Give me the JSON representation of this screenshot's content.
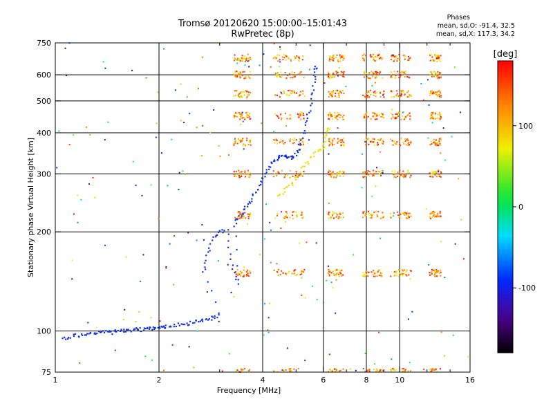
{
  "header": {
    "title": "Tromsø 20120620 15:00:00–15:01:43",
    "subtitle": "RwPretec (8p)"
  },
  "phase_info": {
    "heading": "Phases",
    "line_o": "mean, sd,O: -91.4, 32.5",
    "line_x": "mean, sd,X: 117.3, 34.2"
  },
  "colorbar": {
    "label": "[deg]",
    "ticks": [
      {
        "value": 100,
        "label": "100"
      },
      {
        "value": 0,
        "label": "0"
      },
      {
        "value": -100,
        "label": "-100"
      }
    ],
    "range": [
      -180,
      180
    ]
  },
  "chart_data": {
    "type": "scatter",
    "title": "Tromsø 20120620 15:00:00–15:01:43",
    "subtitle": "RwPretec (8p)",
    "xlabel": "Frequency [MHz]",
    "ylabel": "Stationary phase Virtual Height [km]",
    "x_scale": "log",
    "y_scale": "log",
    "xlim": [
      1,
      16
    ],
    "ylim": [
      75,
      750
    ],
    "x_ticks": [
      {
        "value": 1,
        "label": "1"
      },
      {
        "value": 2,
        "label": "2"
      },
      {
        "value": 4,
        "label": "4"
      },
      {
        "value": 6,
        "label": "6"
      },
      {
        "value": 8,
        "label": "8"
      },
      {
        "value": 10,
        "label": "10"
      },
      {
        "value": 16,
        "label": "16"
      }
    ],
    "y_ticks": [
      {
        "value": 75,
        "label": "75"
      },
      {
        "value": 100,
        "label": "100"
      },
      {
        "value": 200,
        "label": "200"
      },
      {
        "value": 300,
        "label": "300"
      },
      {
        "value": 400,
        "label": "400"
      },
      {
        "value": 500,
        "label": "500"
      },
      {
        "value": 600,
        "label": "600"
      },
      {
        "value": 750,
        "label": "750"
      }
    ],
    "x_gridlines": [
      2,
      4,
      6,
      8,
      10
    ],
    "y_gridlines": [
      100,
      200,
      300,
      400,
      500,
      600
    ],
    "colors": {
      "o_trace": "#1030e0",
      "x_trace": "#e8e000"
    },
    "series": [
      {
        "points": [
          [
            1.05,
            95
          ],
          [
            1.1,
            96
          ],
          [
            1.15,
            97
          ],
          [
            1.2,
            97
          ],
          [
            1.25,
            98
          ],
          [
            1.3,
            98
          ],
          [
            1.35,
            99
          ],
          [
            1.4,
            99
          ],
          [
            1.45,
            99
          ],
          [
            1.5,
            100
          ],
          [
            1.55,
            100
          ],
          [
            1.6,
            100
          ],
          [
            1.65,
            100
          ],
          [
            1.7,
            101
          ],
          [
            1.75,
            101
          ],
          [
            1.8,
            101
          ],
          [
            1.85,
            101
          ],
          [
            1.9,
            102
          ],
          [
            1.95,
            102
          ],
          [
            2.0,
            102
          ],
          [
            2.05,
            103
          ],
          [
            2.1,
            103
          ],
          [
            2.2,
            104
          ],
          [
            2.3,
            105
          ],
          [
            2.4,
            105
          ],
          [
            2.5,
            106
          ],
          [
            2.6,
            107
          ],
          [
            2.7,
            108
          ],
          [
            2.8,
            109
          ],
          [
            2.9,
            110
          ],
          [
            3.0,
            112
          ],
          [
            2.7,
            150
          ],
          [
            2.75,
            165
          ],
          [
            2.8,
            180
          ],
          [
            2.9,
            195
          ],
          [
            3.0,
            200
          ],
          [
            3.15,
            205
          ],
          [
            3.2,
            170
          ],
          [
            3.3,
            150
          ],
          [
            3.4,
            140
          ],
          [
            3.3,
            210
          ],
          [
            3.4,
            220
          ],
          [
            3.5,
            230
          ],
          [
            3.6,
            240
          ],
          [
            3.7,
            250
          ],
          [
            3.8,
            262
          ],
          [
            3.9,
            275
          ],
          [
            4.0,
            290
          ],
          [
            4.1,
            305
          ],
          [
            4.2,
            318
          ],
          [
            4.3,
            330
          ],
          [
            4.4,
            335
          ],
          [
            4.5,
            340
          ],
          [
            4.6,
            340
          ],
          [
            4.7,
            338
          ],
          [
            4.8,
            336
          ],
          [
            4.9,
            338
          ],
          [
            5.0,
            345
          ],
          [
            5.1,
            360
          ],
          [
            5.2,
            380
          ],
          [
            5.3,
            410
          ],
          [
            5.4,
            440
          ],
          [
            5.5,
            480
          ],
          [
            5.6,
            530
          ],
          [
            5.65,
            580
          ],
          [
            5.7,
            630
          ]
        ]
      },
      {
        "points": [
          [
            4.4,
            255
          ],
          [
            4.6,
            265
          ],
          [
            4.8,
            275
          ],
          [
            5.0,
            290
          ],
          [
            5.2,
            310
          ],
          [
            5.4,
            325
          ],
          [
            5.6,
            340
          ],
          [
            5.8,
            352
          ],
          [
            6.0,
            365
          ],
          [
            6.1,
            385
          ],
          [
            6.2,
            410
          ]
        ]
      }
    ],
    "echo_bands_km": [
      75,
      150,
      225,
      300,
      375,
      450,
      525,
      600,
      675
    ]
  }
}
